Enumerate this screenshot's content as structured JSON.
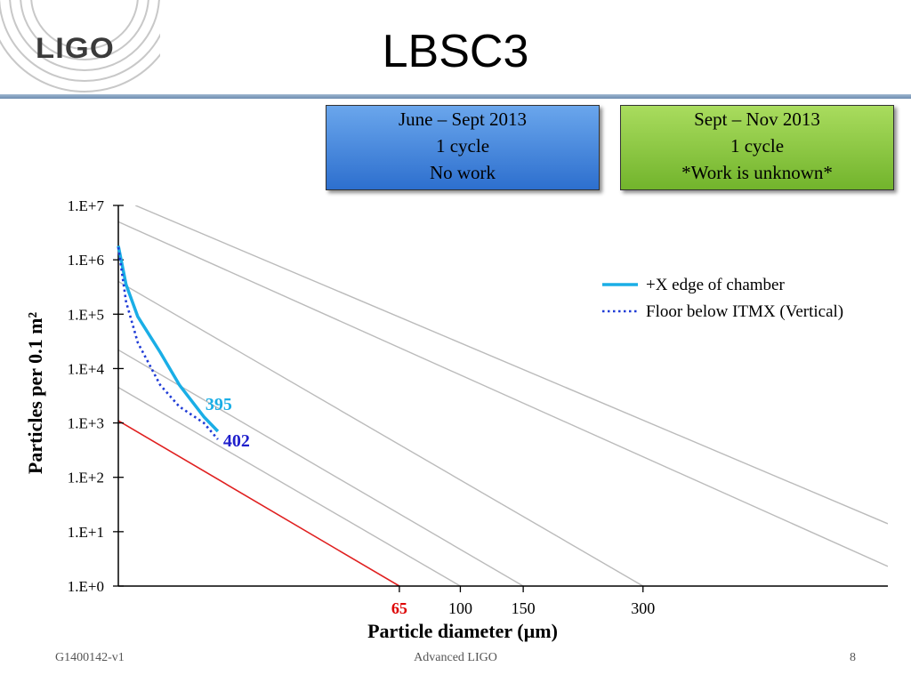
{
  "slide": {
    "logo": "LIGO",
    "title": "LBSC3",
    "footer_left": "G1400142-v1",
    "footer_center": "Advanced LIGO",
    "page_number": "8"
  },
  "boxes": [
    {
      "lines": [
        "June – Sept 2013",
        "1 cycle",
        "No work"
      ],
      "color": "#3a7fd8"
    },
    {
      "lines": [
        "Sept – Nov 2013",
        "1 cycle",
        "*Work is unknown*"
      ],
      "color": "#8cc63f"
    }
  ],
  "chart_data": {
    "type": "line",
    "xlabel": "Particle diameter (µm)",
    "ylabel": "Particles per 0.1 m²",
    "x_scale": "log-squared",
    "y_scale": "log",
    "ylim": [
      1,
      10000000
    ],
    "y_tick_labels": [
      "1.E+0",
      "1.E+1",
      "1.E+2",
      "1.E+3",
      "1.E+4",
      "1.E+5",
      "1.E+6",
      "1.E+7"
    ],
    "x_ticks": [
      {
        "value": 65,
        "label": "65",
        "color": "#dd0000"
      },
      {
        "value": 100,
        "label": "100",
        "color": "#000000"
      },
      {
        "value": 150,
        "label": "150",
        "color": "#000000"
      },
      {
        "value": 300,
        "label": "300",
        "color": "#000000"
      }
    ],
    "grid": "diagonal cleanliness-level reference lines",
    "legend_position": "right",
    "series": [
      {
        "name": "+X edge of chamber",
        "style": "solid",
        "color": "#1aaee6",
        "points": [
          [
            1,
            1800000
          ],
          [
            2,
            350000
          ],
          [
            3,
            90000
          ],
          [
            5,
            20000
          ],
          [
            7,
            5000
          ],
          [
            10,
            1300
          ],
          [
            12,
            700
          ]
        ],
        "end_label": "395",
        "end_label_color": "#1aaee6"
      },
      {
        "name": "Floor below ITMX (Vertical)",
        "style": "dotted",
        "color": "#1f3bd6",
        "points": [
          [
            1,
            1700000
          ],
          [
            2,
            170000
          ],
          [
            3,
            30000
          ],
          [
            5,
            5000
          ],
          [
            7,
            2000
          ],
          [
            10,
            1000
          ],
          [
            12,
            500
          ]
        ],
        "end_label": "402",
        "end_label_color": "#1f1fcc"
      }
    ],
    "reference_lines": [
      {
        "color": "#bbbbbb",
        "points": [
          [
            2.8,
            10000000
          ],
          [
            1000,
            14
          ]
        ]
      },
      {
        "color": "#bbbbbb",
        "points": [
          [
            1,
            5000000
          ],
          [
            1000,
            2.3
          ]
        ]
      },
      {
        "color": "#bbbbbb",
        "points": [
          [
            1,
            400000
          ],
          [
            300,
            1
          ]
        ]
      },
      {
        "color": "#bbbbbb",
        "points": [
          [
            1,
            22000
          ],
          [
            150,
            1
          ]
        ]
      },
      {
        "color": "#bbbbbb",
        "points": [
          [
            1,
            4500
          ],
          [
            100,
            1
          ]
        ]
      },
      {
        "color": "#e02020",
        "points": [
          [
            1,
            1100
          ],
          [
            65,
            1
          ]
        ]
      }
    ]
  }
}
